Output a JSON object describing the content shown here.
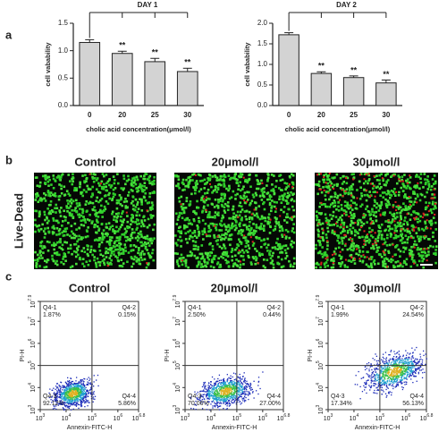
{
  "chart_data": [
    {
      "type": "bar",
      "title": "DAY 1",
      "categories": [
        "0",
        "20",
        "25",
        "30"
      ],
      "values": [
        1.15,
        0.95,
        0.8,
        0.62
      ],
      "errors": [
        0.05,
        0.04,
        0.06,
        0.06
      ],
      "annotations": [
        null,
        "**",
        "**",
        "**"
      ],
      "color": "#d3d3d3",
      "x_label": "cholic acid concentration(μmol/l)",
      "y_label": "cell vabability",
      "ylim": [
        0,
        1.5
      ],
      "yticks": [
        {
          "value": 0,
          "label": "0.0"
        },
        {
          "value": 0.5,
          "label": "0.5"
        },
        {
          "value": 1,
          "label": "1.0"
        },
        {
          "value": 1.5,
          "label": "1.5"
        }
      ]
    },
    {
      "type": "bar",
      "title": "DAY 2",
      "categories": [
        "0",
        "20",
        "25",
        "30"
      ],
      "values": [
        1.72,
        0.78,
        0.68,
        0.55
      ],
      "errors": [
        0.05,
        0.04,
        0.04,
        0.07
      ],
      "annotations": [
        null,
        "**",
        "**",
        "**"
      ],
      "color": "#d3d3d3",
      "x_label": "cholic acid concentration(μmol/l)",
      "y_label": "cell vabability",
      "ylim": [
        0,
        2
      ],
      "yticks": [
        {
          "value": 0,
          "label": "0.0"
        },
        {
          "value": 0.5,
          "label": "0.5"
        },
        {
          "value": 1,
          "label": "1.0"
        },
        {
          "value": 1.5,
          "label": "1.5"
        },
        {
          "value": 2,
          "label": "2.0"
        }
      ]
    }
  ],
  "panel_labels": {
    "a": "a",
    "b": "b",
    "c": "c"
  },
  "live_dead": {
    "row_label": "Live-Dead",
    "columns": [
      "Control",
      "20μmol/l",
      "30μmol/l"
    ]
  },
  "flow": {
    "x_label": "Annexin-FITC-H",
    "y_label": "PI-H",
    "xlim": [
      3,
      6.8
    ],
    "ylim": [
      3,
      7.9
    ],
    "xticks": [
      {
        "value": 3,
        "label": "10",
        "exponent": "3"
      },
      {
        "value": 4,
        "label": "10",
        "exponent": "4"
      },
      {
        "value": 5,
        "label": "10",
        "exponent": "5"
      },
      {
        "value": 6,
        "label": "10",
        "exponent": "6"
      },
      {
        "value": 6.8,
        "label": "10",
        "exponent": "6.8"
      }
    ],
    "yticks": [
      {
        "value": 3,
        "label": "10",
        "exponent": "3"
      },
      {
        "value": 4,
        "label": "10",
        "exponent": "4"
      },
      {
        "value": 5,
        "label": "10",
        "exponent": "5"
      },
      {
        "value": 6,
        "label": "10",
        "exponent": "6"
      },
      {
        "value": 7,
        "label": "10",
        "exponent": "7"
      },
      {
        "value": 7.9,
        "label": "10",
        "exponent": "7.9"
      }
    ],
    "plots": [
      {
        "title": "Control",
        "quadrants": [
          {
            "name": "Q4-1",
            "percent": "1.87%"
          },
          {
            "name": "Q4-2",
            "percent": "0.15%"
          },
          {
            "name": "Q4-3",
            "percent": "92.12%"
          },
          {
            "name": "Q4-4",
            "percent": "5.86%"
          }
        ]
      },
      {
        "title": "20μmol/l",
        "quadrants": [
          {
            "name": "Q4-1",
            "percent": "2.50%"
          },
          {
            "name": "Q4-2",
            "percent": "0.44%"
          },
          {
            "name": "Q4-3",
            "percent": "70.06%"
          },
          {
            "name": "Q4-4",
            "percent": "27.00%"
          }
        ]
      },
      {
        "title": "30μmol/l",
        "quadrants": [
          {
            "name": "Q4-1",
            "percent": "1.99%"
          },
          {
            "name": "Q4-2",
            "percent": "24.54%"
          },
          {
            "name": "Q4-3",
            "percent": "17.34%"
          },
          {
            "name": "Q4-4",
            "percent": "56.13%"
          }
        ]
      }
    ]
  }
}
